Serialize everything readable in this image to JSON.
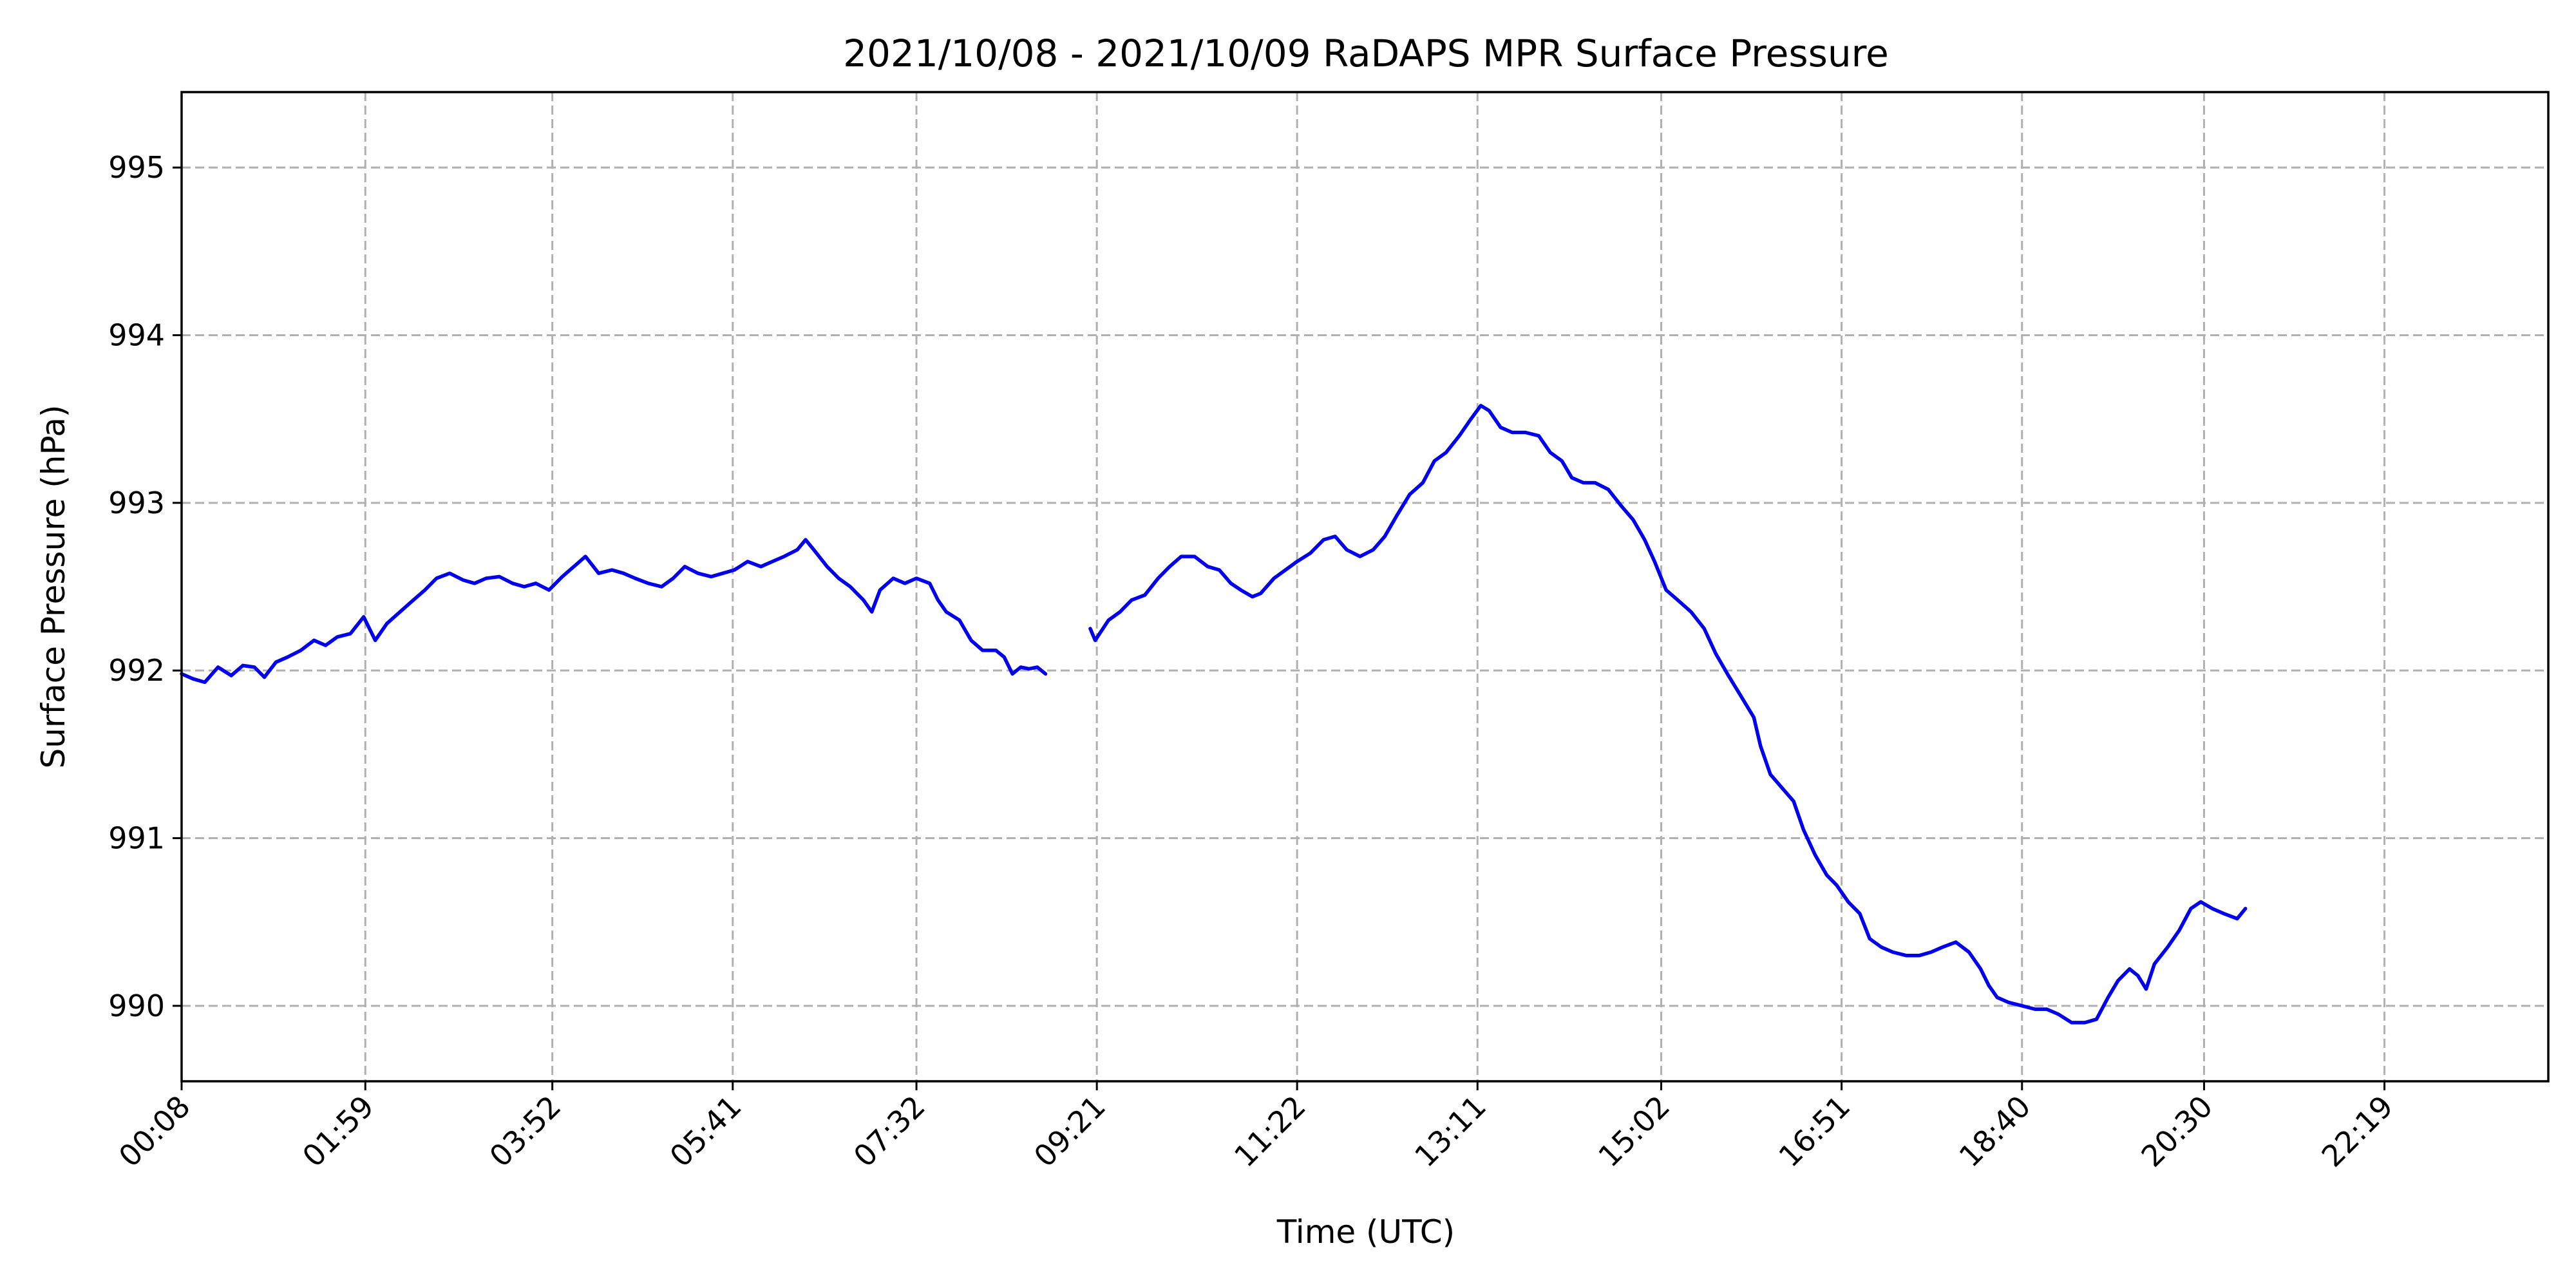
{
  "chart_data": {
    "type": "line",
    "title": "2021/10/08 - 2021/10/09 RaDAPS MPR Surface Pressure",
    "xlabel": "Time (UTC)",
    "ylabel": "Surface Pressure (hPa)",
    "x_unit": "minutes since 00:00 UTC 2021/10/08",
    "xlim": [
      8,
      1438
    ],
    "ylim": [
      989.55,
      995.45
    ],
    "x_ticks": [
      {
        "value": 8,
        "label": "00:08"
      },
      {
        "value": 119,
        "label": "01:59"
      },
      {
        "value": 232,
        "label": "03:52"
      },
      {
        "value": 341,
        "label": "05:41"
      },
      {
        "value": 452,
        "label": "07:32"
      },
      {
        "value": 561,
        "label": "09:21"
      },
      {
        "value": 682,
        "label": "11:22"
      },
      {
        "value": 791,
        "label": "13:11"
      },
      {
        "value": 902,
        "label": "15:02"
      },
      {
        "value": 1011,
        "label": "16:51"
      },
      {
        "value": 1120,
        "label": "18:40"
      },
      {
        "value": 1230,
        "label": "20:30"
      },
      {
        "value": 1339,
        "label": "22:19"
      }
    ],
    "y_ticks": [
      990,
      991,
      992,
      993,
      994,
      995
    ],
    "grid": true,
    "legend": "none",
    "series_color": "#0000ee",
    "series": [
      {
        "segments": [
          [
            [
              8,
              991.98
            ],
            [
              15,
              991.95
            ],
            [
              22,
              991.93
            ],
            [
              30,
              992.02
            ],
            [
              38,
              991.97
            ],
            [
              45,
              992.03
            ],
            [
              52,
              992.02
            ],
            [
              58,
              991.96
            ],
            [
              65,
              992.05
            ],
            [
              72,
              992.08
            ],
            [
              80,
              992.12
            ],
            [
              88,
              992.18
            ],
            [
              95,
              992.15
            ],
            [
              102,
              992.2
            ],
            [
              110,
              992.22
            ],
            [
              118,
              992.32
            ],
            [
              125,
              992.18
            ],
            [
              132,
              992.28
            ],
            [
              140,
              992.35
            ],
            [
              148,
              992.42
            ],
            [
              155,
              992.48
            ],
            [
              162,
              992.55
            ],
            [
              170,
              992.58
            ],
            [
              178,
              992.54
            ],
            [
              185,
              992.52
            ],
            [
              192,
              992.55
            ],
            [
              200,
              992.56
            ],
            [
              208,
              992.52
            ],
            [
              215,
              992.5
            ],
            [
              222,
              992.52
            ],
            [
              230,
              992.48
            ],
            [
              238,
              992.56
            ],
            [
              245,
              992.62
            ],
            [
              252,
              992.68
            ],
            [
              260,
              992.58
            ],
            [
              268,
              992.6
            ],
            [
              275,
              992.58
            ],
            [
              282,
              992.55
            ],
            [
              290,
              992.52
            ],
            [
              298,
              992.5
            ],
            [
              305,
              992.55
            ],
            [
              312,
              992.62
            ],
            [
              320,
              992.58
            ],
            [
              328,
              992.56
            ],
            [
              335,
              992.58
            ],
            [
              342,
              992.6
            ],
            [
              350,
              992.65
            ],
            [
              358,
              992.62
            ],
            [
              365,
              992.65
            ],
            [
              372,
              992.68
            ],
            [
              380,
              992.72
            ],
            [
              385,
              992.78
            ],
            [
              390,
              992.72
            ],
            [
              398,
              992.62
            ],
            [
              405,
              992.55
            ],
            [
              412,
              992.5
            ],
            [
              420,
              992.42
            ],
            [
              425,
              992.35
            ],
            [
              430,
              992.48
            ],
            [
              438,
              992.55
            ],
            [
              445,
              992.52
            ],
            [
              452,
              992.55
            ],
            [
              460,
              992.52
            ],
            [
              465,
              992.42
            ],
            [
              470,
              992.35
            ],
            [
              478,
              992.3
            ],
            [
              485,
              992.18
            ],
            [
              492,
              992.12
            ],
            [
              500,
              992.12
            ],
            [
              505,
              992.08
            ],
            [
              510,
              991.98
            ],
            [
              515,
              992.02
            ],
            [
              520,
              992.01
            ],
            [
              525,
              992.02
            ],
            [
              530,
              991.98
            ]
          ],
          [
            [
              557,
              992.25
            ],
            [
              560,
              992.18
            ],
            [
              568,
              992.3
            ],
            [
              575,
              992.35
            ],
            [
              582,
              992.42
            ],
            [
              590,
              992.45
            ],
            [
              598,
              992.55
            ],
            [
              605,
              992.62
            ],
            [
              612,
              992.68
            ],
            [
              620,
              992.68
            ],
            [
              628,
              992.62
            ],
            [
              635,
              992.6
            ],
            [
              642,
              992.52
            ],
            [
              648,
              992.48
            ],
            [
              655,
              992.44
            ],
            [
              660,
              992.46
            ],
            [
              668,
              992.55
            ],
            [
              675,
              992.6
            ],
            [
              682,
              992.65
            ],
            [
              690,
              992.7
            ],
            [
              698,
              992.78
            ],
            [
              705,
              992.8
            ],
            [
              712,
              992.72
            ],
            [
              720,
              992.68
            ],
            [
              728,
              992.72
            ],
            [
              735,
              992.8
            ],
            [
              742,
              992.92
            ],
            [
              750,
              993.05
            ],
            [
              758,
              993.12
            ],
            [
              765,
              993.25
            ],
            [
              772,
              993.3
            ],
            [
              780,
              993.4
            ],
            [
              787,
              993.5
            ],
            [
              793,
              993.58
            ],
            [
              798,
              993.55
            ],
            [
              805,
              993.45
            ],
            [
              812,
              993.42
            ],
            [
              820,
              993.42
            ],
            [
              828,
              993.4
            ],
            [
              835,
              993.3
            ],
            [
              842,
              993.25
            ],
            [
              848,
              993.15
            ],
            [
              855,
              993.12
            ],
            [
              862,
              993.12
            ],
            [
              870,
              993.08
            ],
            [
              878,
              992.98
            ],
            [
              885,
              992.9
            ],
            [
              892,
              992.78
            ],
            [
              898,
              992.65
            ],
            [
              905,
              992.48
            ],
            [
              912,
              992.42
            ],
            [
              920,
              992.35
            ],
            [
              928,
              992.25
            ],
            [
              935,
              992.1
            ],
            [
              942,
              991.98
            ],
            [
              950,
              991.85
            ],
            [
              958,
              991.72
            ],
            [
              962,
              991.55
            ],
            [
              968,
              991.38
            ],
            [
              975,
              991.3
            ],
            [
              982,
              991.22
            ],
            [
              988,
              991.05
            ],
            [
              995,
              990.9
            ],
            [
              1002,
              990.78
            ],
            [
              1008,
              990.72
            ],
            [
              1015,
              990.62
            ],
            [
              1022,
              990.55
            ],
            [
              1028,
              990.4
            ],
            [
              1035,
              990.35
            ],
            [
              1042,
              990.32
            ],
            [
              1050,
              990.3
            ],
            [
              1058,
              990.3
            ],
            [
              1065,
              990.32
            ],
            [
              1072,
              990.35
            ],
            [
              1080,
              990.38
            ],
            [
              1088,
              990.32
            ],
            [
              1095,
              990.22
            ],
            [
              1100,
              990.12
            ],
            [
              1105,
              990.05
            ],
            [
              1112,
              990.02
            ],
            [
              1120,
              990.0
            ],
            [
              1128,
              989.98
            ],
            [
              1135,
              989.98
            ],
            [
              1142,
              989.95
            ],
            [
              1150,
              989.9
            ],
            [
              1158,
              989.9
            ],
            [
              1165,
              989.92
            ],
            [
              1172,
              990.05
            ],
            [
              1178,
              990.15
            ],
            [
              1185,
              990.22
            ],
            [
              1190,
              990.18
            ],
            [
              1195,
              990.1
            ],
            [
              1200,
              990.25
            ],
            [
              1208,
              990.35
            ],
            [
              1215,
              990.45
            ],
            [
              1222,
              990.58
            ],
            [
              1228,
              990.62
            ],
            [
              1235,
              990.58
            ],
            [
              1242,
              990.55
            ],
            [
              1250,
              990.52
            ],
            [
              1255,
              990.58
            ]
          ]
        ]
      }
    ]
  }
}
